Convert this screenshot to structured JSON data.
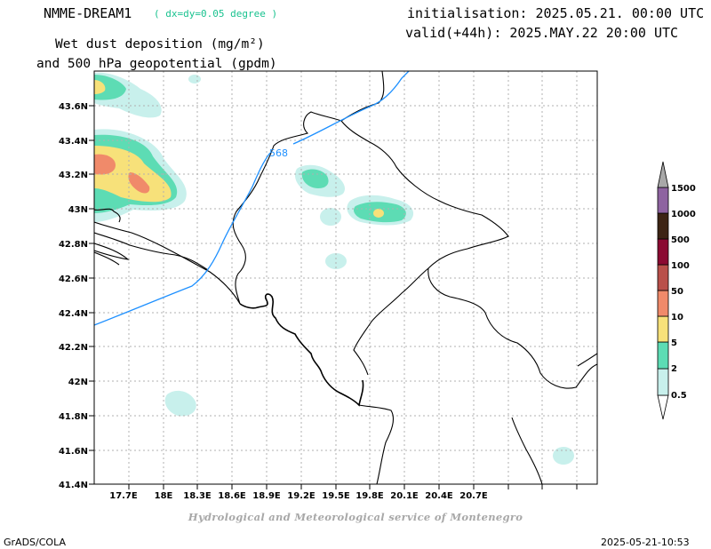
{
  "header": {
    "model_name": "NMME-DREAM1",
    "resolution": "( dx=dy=0.05 degree )",
    "title_line1": "Wet dust deposition (mg/m²)",
    "title_line2": "and 500 hPa geopotential (gpdm)",
    "init_line": "initialisation: 2025.05.21. 00:00 UTC",
    "valid_line": "valid(+44h): 2025.MAY.22 20:00 UTC"
  },
  "map": {
    "lat_labels": [
      "43.6N",
      "43.4N",
      "43.2N",
      "43N",
      "42.8N",
      "42.6N",
      "42.4N",
      "42.2N",
      "42N",
      "41.8N",
      "41.6N",
      "41.4N"
    ],
    "lon_labels": [
      "17.7E",
      "18E",
      "18.3E",
      "18.6E",
      "18.9E",
      "19.2E",
      "19.5E",
      "19.8E",
      "20.1E",
      "20.4E",
      "20.7E"
    ],
    "contour_label": "568",
    "contour_color": "#1e90ff",
    "boundary_color": "#000000",
    "grid": true
  },
  "legend": {
    "levels": [
      "0.5",
      "2",
      "5",
      "10",
      "50",
      "100",
      "500",
      "1000",
      "1500"
    ],
    "colors": [
      "#c8f0ec",
      "#5ddcb4",
      "#f7e17a",
      "#f08a6a",
      "#b9504a",
      "#8b0a32",
      "#3d2414",
      "#8e63a0",
      "#a8a8a8"
    ]
  },
  "footer": {
    "credit": "Hydrological and Meteorological service of Montenegro",
    "software": "GrADS/COLA",
    "timestamp": "2025-05-21-10:53"
  }
}
